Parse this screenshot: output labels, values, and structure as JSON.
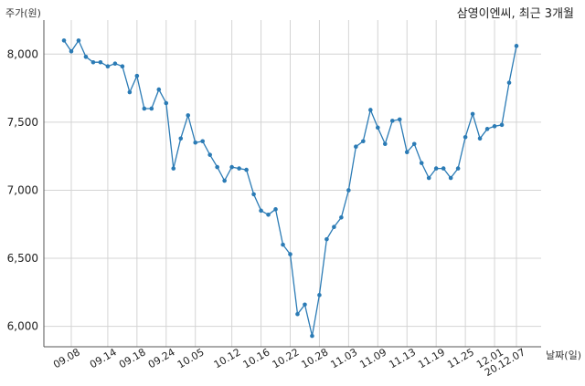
{
  "chart_data": {
    "type": "line",
    "title": "삼영이엔씨, 최근 3개월",
    "xlabel": "날짜(일)",
    "ylabel": "주가(원)",
    "ylim": [
      5850,
      8250
    ],
    "yticks": [
      6000,
      6500,
      7000,
      7500,
      8000
    ],
    "ytick_labels": [
      "6,000",
      "6,500",
      "7,000",
      "7,500",
      "8,000"
    ],
    "xtick_labels": [
      "09.08",
      "09.14",
      "09.18",
      "09.24",
      "10.05",
      "10.12",
      "10.16",
      "10.22",
      "10.28",
      "11.03",
      "11.09",
      "11.13",
      "11.19",
      "11.25",
      "12.01",
      "20.12.07"
    ],
    "xtick_index": [
      2,
      7,
      11,
      15,
      19,
      24,
      28,
      32,
      36,
      40,
      44,
      48,
      52,
      56,
      60,
      63
    ],
    "grid": true,
    "color": "#2b7bb5",
    "series": [
      {
        "values": [
          8100,
          8020,
          8100,
          7980,
          7940,
          7940,
          7910,
          7930,
          7910,
          7720,
          7840,
          7600,
          7600,
          7740,
          7640,
          7160,
          7380,
          7550,
          7350,
          7360,
          7260,
          7170,
          7070,
          7170,
          7160,
          7150,
          6970,
          6850,
          6820,
          6860,
          6600,
          6530,
          6090,
          6160,
          5930,
          6230,
          6640,
          6730,
          6800,
          7000,
          7320,
          7360,
          7590,
          7460,
          7340,
          7510,
          7520,
          7280,
          7340,
          7200,
          7090,
          7160,
          7160,
          7090,
          7160,
          7390,
          7560,
          7380,
          7450,
          7470,
          7480,
          7790,
          8060
        ]
      }
    ]
  }
}
